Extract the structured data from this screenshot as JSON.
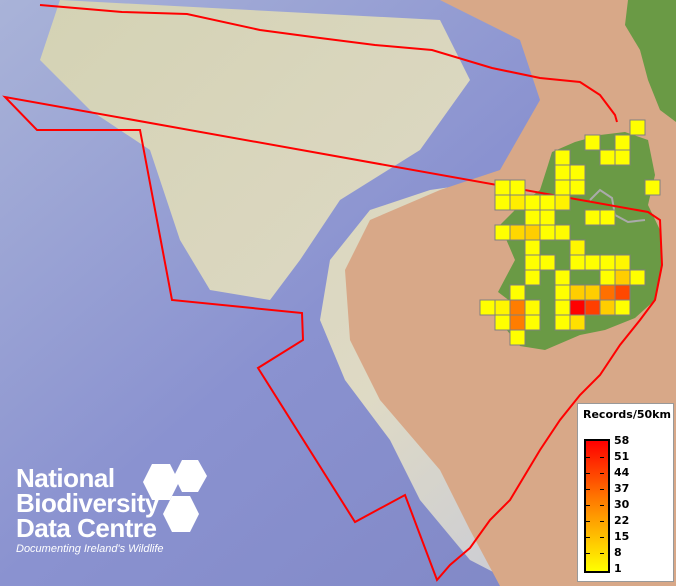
{
  "legend": {
    "title": "Records/50km",
    "ticks": [
      "58",
      "51",
      "44",
      "37",
      "30",
      "22",
      "15",
      "8",
      "1"
    ],
    "min": 1,
    "max": 58,
    "colors": {
      "low": "#ffff00",
      "mid": "#ff8c00",
      "high": "#ff0000"
    }
  },
  "logo": {
    "lines": [
      "National",
      "Biodiversity",
      "Data Centre"
    ],
    "tagline": "Documenting Ireland's Wildlife"
  },
  "colors": {
    "boundary": "#ff0000",
    "cell_border": "#808080",
    "land": "#6a9a45",
    "sea_deep": "#8a92d0",
    "shelf": "#e6ddb8",
    "terrain": "#d8a888"
  },
  "records_grid": [
    {
      "col": 10,
      "row": 0,
      "records": 1
    },
    {
      "col": 7,
      "row": 1,
      "records": 1
    },
    {
      "col": 9,
      "row": 1,
      "records": 1
    },
    {
      "col": 5,
      "row": 2,
      "records": 1
    },
    {
      "col": 8,
      "row": 2,
      "records": 1
    },
    {
      "col": 9,
      "row": 2,
      "records": 1
    },
    {
      "col": 5,
      "row": 3,
      "records": 1
    },
    {
      "col": 6,
      "row": 3,
      "records": 1
    },
    {
      "col": 1,
      "row": 4,
      "records": 1
    },
    {
      "col": 2,
      "row": 4,
      "records": 1
    },
    {
      "col": 5,
      "row": 4,
      "records": 1
    },
    {
      "col": 6,
      "row": 4,
      "records": 1
    },
    {
      "col": 11,
      "row": 4,
      "records": 1
    },
    {
      "col": 1,
      "row": 5,
      "records": 1
    },
    {
      "col": 2,
      "row": 5,
      "records": 5
    },
    {
      "col": 3,
      "row": 5,
      "records": 1
    },
    {
      "col": 4,
      "row": 5,
      "records": 1
    },
    {
      "col": 5,
      "row": 5,
      "records": 4
    },
    {
      "col": 3,
      "row": 6,
      "records": 1
    },
    {
      "col": 4,
      "row": 6,
      "records": 1
    },
    {
      "col": 7,
      "row": 6,
      "records": 1
    },
    {
      "col": 8,
      "row": 6,
      "records": 1
    },
    {
      "col": 1,
      "row": 7,
      "records": 1
    },
    {
      "col": 2,
      "row": 7,
      "records": 10
    },
    {
      "col": 3,
      "row": 7,
      "records": 12
    },
    {
      "col": 4,
      "row": 7,
      "records": 1
    },
    {
      "col": 5,
      "row": 7,
      "records": 2
    },
    {
      "col": 3,
      "row": 8,
      "records": 1
    },
    {
      "col": 6,
      "row": 8,
      "records": 3
    },
    {
      "col": 3,
      "row": 9,
      "records": 1
    },
    {
      "col": 4,
      "row": 9,
      "records": 1
    },
    {
      "col": 6,
      "row": 9,
      "records": 1
    },
    {
      "col": 7,
      "row": 9,
      "records": 1
    },
    {
      "col": 8,
      "row": 9,
      "records": 1
    },
    {
      "col": 9,
      "row": 9,
      "records": 3
    },
    {
      "col": 3,
      "row": 10,
      "records": 1
    },
    {
      "col": 5,
      "row": 10,
      "records": 1
    },
    {
      "col": 8,
      "row": 10,
      "records": 1
    },
    {
      "col": 9,
      "row": 10,
      "records": 12
    },
    {
      "col": 10,
      "row": 10,
      "records": 1
    },
    {
      "col": 2,
      "row": 11,
      "records": 1
    },
    {
      "col": 5,
      "row": 11,
      "records": 1
    },
    {
      "col": 6,
      "row": 11,
      "records": 12
    },
    {
      "col": 7,
      "row": 11,
      "records": 12
    },
    {
      "col": 8,
      "row": 11,
      "records": 33
    },
    {
      "col": 9,
      "row": 11,
      "records": 42
    },
    {
      "col": 0,
      "row": 12,
      "records": 1
    },
    {
      "col": 1,
      "row": 12,
      "records": 3
    },
    {
      "col": 2,
      "row": 12,
      "records": 30
    },
    {
      "col": 3,
      "row": 12,
      "records": 2
    },
    {
      "col": 5,
      "row": 12,
      "records": 1
    },
    {
      "col": 6,
      "row": 12,
      "records": 58
    },
    {
      "col": 7,
      "row": 12,
      "records": 44
    },
    {
      "col": 8,
      "row": 12,
      "records": 12
    },
    {
      "col": 9,
      "row": 12,
      "records": 1
    },
    {
      "col": 1,
      "row": 13,
      "records": 1
    },
    {
      "col": 2,
      "row": 13,
      "records": 30
    },
    {
      "col": 3,
      "row": 13,
      "records": 1
    },
    {
      "col": 5,
      "row": 13,
      "records": 1
    },
    {
      "col": 6,
      "row": 13,
      "records": 8
    },
    {
      "col": 2,
      "row": 14,
      "records": 1
    }
  ]
}
